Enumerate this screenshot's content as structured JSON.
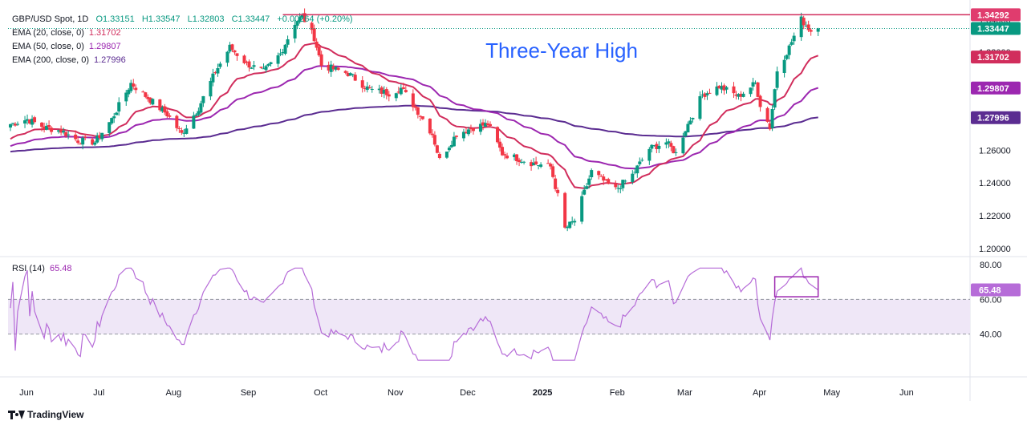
{
  "header": {
    "symbol": "GBP/USD Spot, 1D",
    "open": "O1.33151",
    "high": "H1.33547",
    "low": "L1.32803",
    "close": "C1.33447",
    "change": "+0.00264 (+0.20%)"
  },
  "indicators": [
    {
      "label": "EMA (20, close, 0)",
      "value": "1.31702",
      "color": "#d12d5c"
    },
    {
      "label": "EMA (50, close, 0)",
      "value": "1.29807",
      "color": "#9c27b0"
    },
    {
      "label": "EMA (200, close, 0)",
      "value": "1.27996",
      "color": "#5b2c91"
    }
  ],
  "rsi_label": {
    "label": "RSI (14)",
    "value": "65.48"
  },
  "branding": {
    "logo_text": "TradingView"
  },
  "colors": {
    "up": "#089981",
    "down": "#f23645",
    "resistance": "#d12d5c",
    "rsi_line": "#b66cd8",
    "rsi_band": "#efe7f7"
  },
  "chart_data": [
    {
      "type": "candlestick",
      "title": "GBP/USD Spot, 1D",
      "annotation": "Three-Year High",
      "x_tick_labels": [
        "Jun",
        "Jul",
        "Aug",
        "Sep",
        "Oct",
        "Nov",
        "Dec",
        "2025",
        "Feb",
        "Mar",
        "Apr",
        "May",
        "Jun"
      ],
      "y_tick_labels": [
        "1.20000",
        "1.22000",
        "1.24000",
        "1.26000",
        "1.28000",
        "1.30000",
        "1.32000",
        "1.34000"
      ],
      "ylim": [
        1.195,
        1.347
      ],
      "price_tags": [
        {
          "value": "1.34292",
          "color": "#e03c6e"
        },
        {
          "value": "1.33447",
          "color": "#089981"
        },
        {
          "value": "1.31702",
          "color": "#d12d5c"
        },
        {
          "value": "1.29807",
          "color": "#9c27b0"
        },
        {
          "value": "1.27996",
          "color": "#5b2c91"
        }
      ],
      "horizontal_line": 1.34292,
      "last_price": 1.33447,
      "close_waypoints": [
        [
          "2024-05-28",
          1.276
        ],
        [
          "2024-06-04",
          1.279
        ],
        [
          "2024-06-11",
          1.274
        ],
        [
          "2024-06-18",
          1.272
        ],
        [
          "2024-06-25",
          1.266
        ],
        [
          "2024-07-02",
          1.265
        ],
        [
          "2024-07-09",
          1.279
        ],
        [
          "2024-07-17",
          1.301
        ],
        [
          "2024-07-24",
          1.292
        ],
        [
          "2024-08-01",
          1.282
        ],
        [
          "2024-08-07",
          1.27
        ],
        [
          "2024-08-14",
          1.286
        ],
        [
          "2024-08-21",
          1.308
        ],
        [
          "2024-08-27",
          1.323
        ],
        [
          "2024-09-03",
          1.313
        ],
        [
          "2024-09-10",
          1.308
        ],
        [
          "2024-09-17",
          1.319
        ],
        [
          "2024-09-23",
          1.338
        ],
        [
          "2024-09-26",
          1.342
        ],
        [
          "2024-10-01",
          1.329
        ],
        [
          "2024-10-04",
          1.312
        ],
        [
          "2024-10-15",
          1.307
        ],
        [
          "2024-10-24",
          1.297
        ],
        [
          "2024-11-01",
          1.295
        ],
        [
          "2024-11-06",
          1.298
        ],
        [
          "2024-11-12",
          1.286
        ],
        [
          "2024-11-19",
          1.27
        ],
        [
          "2024-11-22",
          1.254
        ],
        [
          "2024-11-29",
          1.27
        ],
        [
          "2024-12-06",
          1.274
        ],
        [
          "2024-12-12",
          1.276
        ],
        [
          "2024-12-18",
          1.258
        ],
        [
          "2024-12-31",
          1.252
        ],
        [
          "2025-01-07",
          1.25
        ],
        [
          "2025-01-10",
          1.232
        ],
        [
          "2025-01-13",
          1.212
        ],
        [
          "2025-01-17",
          1.217
        ],
        [
          "2025-01-24",
          1.247
        ],
        [
          "2025-01-31",
          1.239
        ],
        [
          "2025-02-03",
          1.236
        ],
        [
          "2025-02-10",
          1.245
        ],
        [
          "2025-02-17",
          1.261
        ],
        [
          "2025-02-24",
          1.265
        ],
        [
          "2025-02-28",
          1.258
        ],
        [
          "2025-03-04",
          1.273
        ],
        [
          "2025-03-11",
          1.294
        ],
        [
          "2025-03-18",
          1.299
        ],
        [
          "2025-03-26",
          1.293
        ],
        [
          "2025-04-02",
          1.301
        ],
        [
          "2025-04-04",
          1.288
        ],
        [
          "2025-04-08",
          1.274
        ],
        [
          "2025-04-11",
          1.309
        ],
        [
          "2025-04-16",
          1.323
        ],
        [
          "2025-04-21",
          1.34
        ],
        [
          "2025-04-25",
          1.333
        ],
        [
          "2025-04-28",
          1.3345
        ]
      ],
      "series": [
        {
          "name": "EMA (20, close, 0)",
          "last": 1.31702
        },
        {
          "name": "EMA (50, close, 0)",
          "last": 1.29807
        },
        {
          "name": "EMA (200, close, 0)",
          "last": 1.27996
        }
      ]
    },
    {
      "type": "line",
      "title": "RSI (14)",
      "y_tick_labels": [
        "40.00",
        "60.00",
        "80.00"
      ],
      "ylim": [
        20,
        80
      ],
      "band": [
        40,
        60
      ],
      "last_value": 65.48,
      "value_tag": "65.48",
      "highlight_box_x": [
        "2025-04-10",
        "2025-04-28"
      ],
      "highlight_box_y": [
        61.5,
        73
      ]
    }
  ]
}
